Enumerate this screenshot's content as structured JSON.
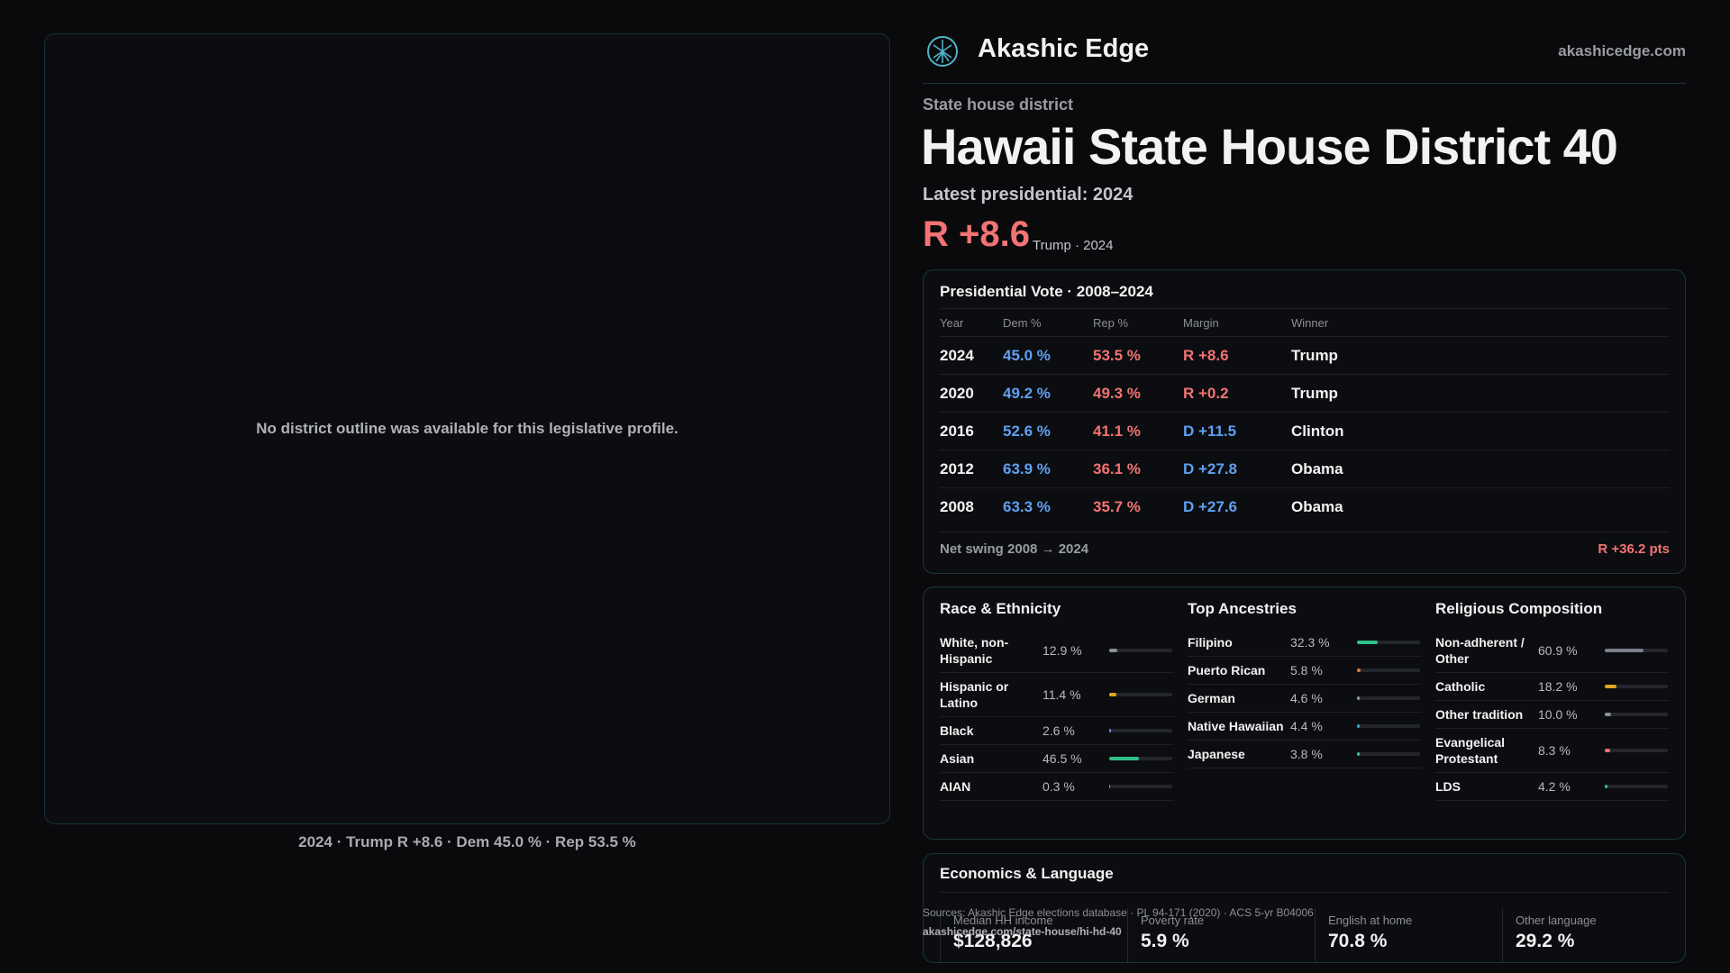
{
  "header": {
    "brand": "Akashic Edge",
    "domain": "akashicedge.com"
  },
  "map_panel": {
    "message": "No district outline was available for this legislative profile.",
    "caption": "2024 · Trump R +8.6 · Dem 45.0 % · Rep 53.5 %"
  },
  "district": {
    "kind": "State house district",
    "name": "Hawaii State House District 40",
    "latest_label": "Latest presidential: 2024",
    "margin": "R +8.6",
    "margin_note": "Trump · 2024"
  },
  "vote_table": {
    "title": "Presidential Vote · 2008–2024",
    "dem_color": "#5fa0f2",
    "rep_color": "#f27373",
    "columns": [
      "Year",
      "Dem %",
      "Rep %",
      "Margin",
      "Winner"
    ],
    "rows": [
      [
        "2024",
        "45.0 %",
        "53.5 %",
        "R +8.6",
        "Trump"
      ],
      [
        "2020",
        "49.2 %",
        "49.3 %",
        "R +0.2",
        "Trump"
      ],
      [
        "2016",
        "52.6 %",
        "41.1 %",
        "D +11.5",
        "Clinton"
      ],
      [
        "2012",
        "63.9 %",
        "36.1 %",
        "D +27.8",
        "Obama"
      ],
      [
        "2008",
        "63.3 %",
        "35.7 %",
        "D +27.6",
        "Obama"
      ]
    ],
    "footer_label": "Net swing 2008 → 2024",
    "footer_value": "R +36.2 pts"
  },
  "demographics": [
    {
      "title": "Race & Ethnicity",
      "rows": [
        {
          "label": "White, non-Hispanic",
          "value": 12.9,
          "value_label": "12.9 %",
          "color": "#8a8f99"
        },
        {
          "label": "Hispanic or Latino",
          "value": 11.4,
          "value_label": "11.4 %",
          "color": "#e0a526"
        },
        {
          "label": "Black",
          "value": 2.6,
          "value_label": "2.6 %",
          "color": "#7b7ff0"
        },
        {
          "label": "Asian",
          "value": 46.5,
          "value_label": "46.5 %",
          "color": "#2fbf8a"
        },
        {
          "label": "AIAN",
          "value": 0.3,
          "value_label": "0.3 %",
          "color": "#e07a3a"
        }
      ]
    },
    {
      "title": "Top Ancestries",
      "rows": [
        {
          "label": "Filipino",
          "value": 32.3,
          "value_label": "32.3 %",
          "color": "#2fbf8a"
        },
        {
          "label": "Puerto Rican",
          "value": 5.8,
          "value_label": "5.8 %",
          "color": "#e07a3a"
        },
        {
          "label": "German",
          "value": 4.6,
          "value_label": "4.6 %",
          "color": "#8a8f99"
        },
        {
          "label": "Native Hawaiian",
          "value": 4.4,
          "value_label": "4.4 %",
          "color": "#2aa6b8"
        },
        {
          "label": "Japanese",
          "value": 3.8,
          "value_label": "3.8 %",
          "color": "#2fbf8a"
        }
      ]
    },
    {
      "title": "Religious Composition",
      "rows": [
        {
          "label": "Non-adherent / Other",
          "value": 60.9,
          "value_label": "60.9 %",
          "color": "#7a808c"
        },
        {
          "label": "Catholic",
          "value": 18.2,
          "value_label": "18.2 %",
          "color": "#e0a526"
        },
        {
          "label": "Other tradition",
          "value": 10.0,
          "value_label": "10.0 %",
          "color": "#8a8f99"
        },
        {
          "label": "Evangelical Protestant",
          "value": 8.3,
          "value_label": "8.3 %",
          "color": "#f27373"
        },
        {
          "label": "LDS",
          "value": 4.2,
          "value_label": "4.2 %",
          "color": "#2fbf8a"
        }
      ]
    }
  ],
  "economics": {
    "title": "Economics & Language",
    "items": [
      {
        "label": "Median HH income",
        "value": "$128,826"
      },
      {
        "label": "Poverty rate",
        "value": "5.9 %"
      },
      {
        "label": "English at home",
        "value": "70.8 %"
      },
      {
        "label": "Other language",
        "value": "29.2 %"
      }
    ]
  },
  "source": {
    "text": "Sources: Akashic Edge elections database · PL 94-171 (2020) · ACS 5-yr B04006",
    "url": "akashicedge.com/state-house/hi-hd-40"
  }
}
